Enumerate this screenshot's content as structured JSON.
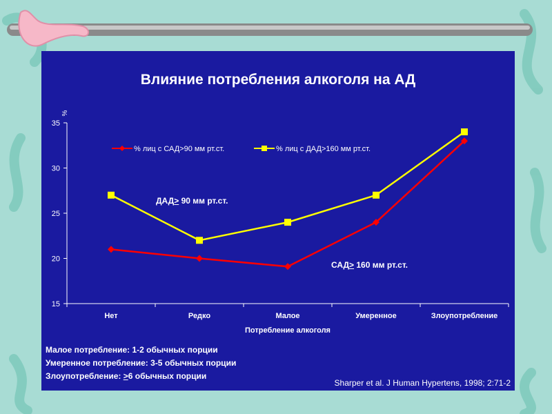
{
  "chart_data": {
    "type": "line",
    "title": "Влияние потребления  алкоголя на АД",
    "ylabel": "%",
    "xlabel": "Потребление алкоголя",
    "ylim": [
      15,
      35
    ],
    "yticks": [
      15,
      20,
      25,
      30,
      35
    ],
    "categories": [
      "Нет",
      "Редко",
      "Малое",
      "Умеренное",
      "Злоупотребление"
    ],
    "legend_position": "top",
    "series": [
      {
        "name": "% лиц с САД>90 мм рт.ст.",
        "color": "#ff0000",
        "marker": "diamond",
        "values": [
          21,
          20,
          19.1,
          24,
          33
        ]
      },
      {
        "name": "% лиц с ДАД>160 мм рт.ст.",
        "color": "#ffff00",
        "marker": "square",
        "values": [
          27,
          22,
          24,
          27,
          34
        ]
      }
    ],
    "annotations": [
      {
        "prefix": "ДАД",
        "underlined": ">",
        "suffix": " 90 мм рт.ст."
      },
      {
        "prefix": "САД",
        "underlined": ">",
        "suffix": " 160 мм рт.ст."
      }
    ],
    "notes": [
      {
        "prefix": "Малое потребление:  1-2 обычных порции",
        "underlined": "",
        "suffix": ""
      },
      {
        "prefix": "Умеренное потребление: 3-5 обычных порции",
        "underlined": "",
        "suffix": ""
      },
      {
        "prefix": "Злоупотребление: ",
        "underlined": ">",
        "suffix": "6 обычных порции"
      }
    ],
    "source": "Sharper et al. J Human Hypertens, 1998; 2:71-2"
  },
  "colors": {
    "slide_background": "#a8dcd4",
    "panel": "#1a1aa0",
    "decor_bar": "#8a8a8a"
  }
}
